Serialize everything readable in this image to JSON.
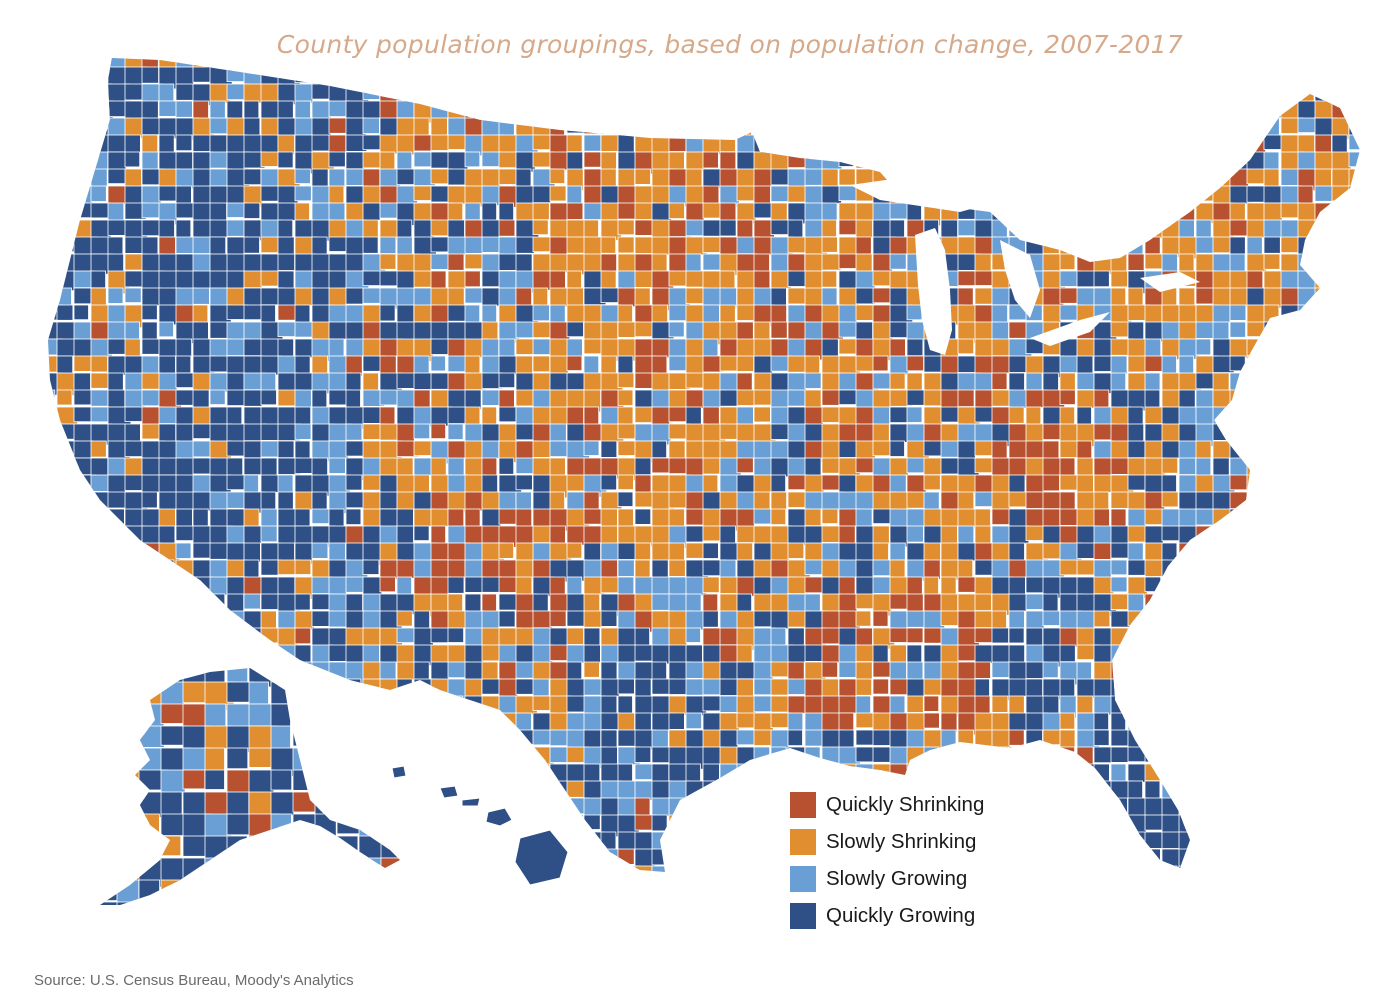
{
  "title": "County population groupings, based on population change, 2007-2017",
  "source": "Source: U.S. Census Bureau, Moody's Analytics",
  "legend": [
    {
      "key": "quickly_shrinking",
      "label": "Quickly Shrinking",
      "color": "#b8512f"
    },
    {
      "key": "slowly_shrinking",
      "label": "Slowly Shrinking",
      "color": "#e08e2f"
    },
    {
      "key": "slowly_growing",
      "label": "Slowly Growing",
      "color": "#6a9fd6"
    },
    {
      "key": "quickly_growing",
      "label": "Quickly Growing",
      "color": "#2f4f87"
    }
  ],
  "colors": {
    "background": "#ffffff",
    "county_border": "#ffffff",
    "title": "#d6a98a"
  },
  "regions": [
    "contiguous-us",
    "alaska",
    "hawaii"
  ]
}
